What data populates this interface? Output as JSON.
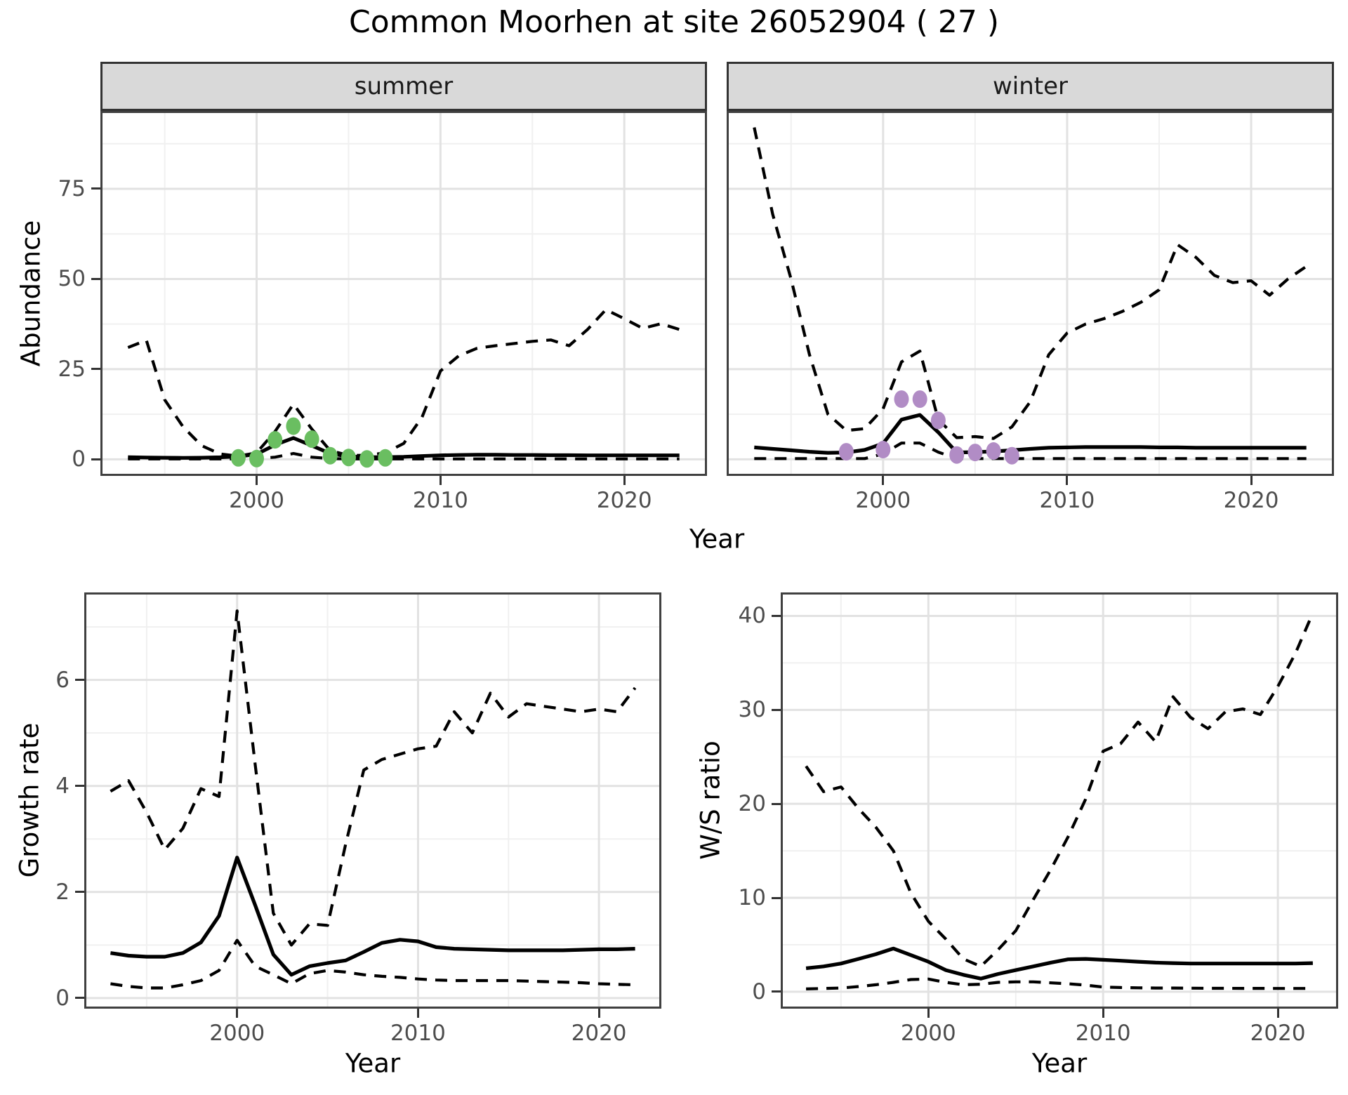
{
  "title": "Common Moorhen at site 26052904 ( 27 )",
  "axis_titles": {
    "x": "Year",
    "y_abundance": "Abundance",
    "y_growth": "Growth rate",
    "y_ws": "W/S ratio"
  },
  "theme": {
    "point_green": "#6ABE61",
    "point_purple": "#B18CC5",
    "line_color": "#000000",
    "strip_bg": "#D9D9D9",
    "panel_border": "#404040",
    "grid_major": "#E2E2E2",
    "grid_minor": "#F0F0F0",
    "tick_color": "#333333",
    "tick_label_color": "#4D4D4D"
  },
  "chart_data": [
    {
      "id": "abundance-summer",
      "type": "line",
      "facet_label": "summer",
      "xlabel": "Year",
      "ylabel": "Abundance",
      "x_ticks": [
        2000,
        2010,
        2020
      ],
      "x_minor": [
        1995,
        2005,
        2015
      ],
      "y_ticks": [
        0,
        25,
        50,
        75
      ],
      "y_minor": [
        12.5,
        37.5,
        62.5,
        87.5
      ],
      "xlim": [
        1991.5,
        2024.5
      ],
      "ylim": [
        -4.6,
        96.6
      ],
      "x": [
        1993,
        1994,
        1995,
        1996,
        1997,
        1998,
        1999,
        2000,
        2001,
        2002,
        2003,
        2004,
        2005,
        2006,
        2007,
        2008,
        2009,
        2010,
        2011,
        2012,
        2013,
        2014,
        2015,
        2016,
        2017,
        2018,
        2019,
        2020,
        2021,
        2022,
        2023
      ],
      "series": [
        {
          "name": "median",
          "style": "solid",
          "values": [
            0.6,
            0.5,
            0.45,
            0.4,
            0.45,
            0.55,
            0.8,
            1.4,
            4.0,
            5.9,
            3.8,
            1.6,
            0.8,
            0.6,
            0.6,
            0.7,
            0.9,
            1.1,
            1.2,
            1.25,
            1.25,
            1.2,
            1.2,
            1.15,
            1.15,
            1.1,
            1.1,
            1.1,
            1.1,
            1.1,
            1.1
          ]
        },
        {
          "name": "upper_95ci",
          "style": "dashed",
          "values": [
            31,
            33,
            16.5,
            9,
            3.8,
            1.5,
            0.9,
            1.8,
            7.7,
            15.3,
            8.4,
            2.4,
            1.1,
            1.1,
            1.8,
            4.4,
            11.7,
            24.5,
            28.7,
            30.8,
            31.5,
            32.1,
            32.7,
            33.1,
            31.5,
            36,
            41.5,
            39,
            36.3,
            37.6,
            36
          ]
        },
        {
          "name": "lower_95ci",
          "style": "dashed",
          "values": [
            0.1,
            0.1,
            0.1,
            0.1,
            0.1,
            0.1,
            0.1,
            0.2,
            0.6,
            1.6,
            0.6,
            0.2,
            0.1,
            0.1,
            0.1,
            0.1,
            0.1,
            0.1,
            0.1,
            0.1,
            0.1,
            0.1,
            0.1,
            0.1,
            0.1,
            0.1,
            0.1,
            0.1,
            0.1,
            0.1,
            0.1
          ]
        }
      ],
      "points": {
        "label": "observed summer counts",
        "color": "#6ABE61",
        "x": [
          1999,
          2000,
          2001,
          2002,
          2003,
          2004,
          2005,
          2006,
          2007
        ],
        "y": [
          0.4,
          0.2,
          5.4,
          9.2,
          5.6,
          1.0,
          0.5,
          0.1,
          0.4
        ]
      }
    },
    {
      "id": "abundance-winter",
      "type": "line",
      "facet_label": "winter",
      "xlabel": "Year",
      "ylabel": "Abundance",
      "x_ticks": [
        2000,
        2010,
        2020
      ],
      "x_minor": [
        1995,
        2005,
        2015
      ],
      "y_ticks": [
        0,
        25,
        50,
        75
      ],
      "y_minor": [
        12.5,
        37.5,
        62.5,
        87.5
      ],
      "xlim": [
        1991.5,
        2024.5
      ],
      "ylim": [
        -4.6,
        96.6
      ],
      "x": [
        1993,
        1994,
        1995,
        1996,
        1997,
        1998,
        1999,
        2000,
        2001,
        2002,
        2003,
        2004,
        2005,
        2006,
        2007,
        2008,
        2009,
        2010,
        2011,
        2012,
        2013,
        2014,
        2015,
        2016,
        2017,
        2018,
        2019,
        2020,
        2021,
        2022,
        2023
      ],
      "series": [
        {
          "name": "median",
          "style": "solid",
          "values": [
            3.3,
            2.9,
            2.5,
            2.1,
            1.8,
            1.9,
            2.6,
            4.4,
            11,
            12.3,
            7.5,
            1.9,
            2.0,
            2.2,
            2.5,
            2.9,
            3.2,
            3.3,
            3.4,
            3.4,
            3.4,
            3.4,
            3.3,
            3.3,
            3.2,
            3.2,
            3.2,
            3.2,
            3.2,
            3.2,
            3.2
          ]
        },
        {
          "name": "upper_95ci",
          "style": "dashed",
          "values": [
            92,
            68,
            50,
            29,
            12.5,
            8,
            8.5,
            14,
            27,
            30,
            11,
            6,
            6.3,
            5.8,
            9,
            16,
            29,
            35,
            37.5,
            39,
            41,
            43.5,
            47,
            59.5,
            56,
            51,
            49,
            49.5,
            45.5,
            50,
            53.5
          ]
        },
        {
          "name": "lower_95ci",
          "style": "dashed",
          "values": [
            0.2,
            0.2,
            0.2,
            0.2,
            0.2,
            0.2,
            0.2,
            1.5,
            4.5,
            4.5,
            2,
            0.2,
            0.2,
            0.2,
            0.2,
            0.2,
            0.2,
            0.2,
            0.2,
            0.2,
            0.2,
            0.2,
            0.2,
            0.2,
            0.2,
            0.2,
            0.2,
            0.2,
            0.2,
            0.2,
            0.2
          ]
        }
      ],
      "points": {
        "label": "observed winter counts",
        "color": "#B18CC5",
        "x": [
          1998,
          2000,
          2001,
          2002,
          2003,
          2004,
          2005,
          2006,
          2007
        ],
        "y": [
          2.1,
          2.7,
          16.7,
          16.7,
          10.8,
          1.2,
          1.9,
          2.3,
          1.0
        ]
      }
    },
    {
      "id": "growth-rate",
      "type": "line",
      "facet_label": "",
      "xlabel": "Year",
      "ylabel": "Growth rate",
      "x_ticks": [
        2000,
        2010,
        2020
      ],
      "x_minor": [
        1995,
        2005,
        2015
      ],
      "y_ticks": [
        0,
        2,
        4,
        6
      ],
      "y_minor": [
        1,
        3,
        5,
        7
      ],
      "xlim": [
        1991.55,
        2023.45
      ],
      "ylim": [
        -0.2,
        7.65
      ],
      "x": [
        1993,
        1994,
        1995,
        1996,
        1997,
        1998,
        1999,
        2000,
        2001,
        2002,
        2003,
        2004,
        2005,
        2006,
        2007,
        2008,
        2009,
        2010,
        2011,
        2012,
        2013,
        2014,
        2015,
        2016,
        2017,
        2018,
        2019,
        2020,
        2021,
        2022
      ],
      "series": [
        {
          "name": "median",
          "style": "solid",
          "values": [
            0.85,
            0.8,
            0.78,
            0.78,
            0.85,
            1.05,
            1.55,
            2.65,
            1.75,
            0.82,
            0.44,
            0.6,
            0.66,
            0.71,
            0.87,
            1.04,
            1.1,
            1.07,
            0.96,
            0.93,
            0.92,
            0.91,
            0.9,
            0.9,
            0.9,
            0.9,
            0.91,
            0.92,
            0.92,
            0.93
          ]
        },
        {
          "name": "upper_95ci",
          "style": "dashed",
          "values": [
            3.9,
            4.1,
            3.5,
            2.8,
            3.2,
            3.95,
            3.8,
            7.3,
            4.4,
            1.6,
            1.0,
            1.4,
            1.37,
            2.9,
            4.3,
            4.5,
            4.6,
            4.7,
            4.75,
            5.4,
            5.0,
            5.75,
            5.3,
            5.55,
            5.5,
            5.45,
            5.4,
            5.45,
            5.4,
            5.85
          ]
        },
        {
          "name": "lower_95ci",
          "style": "dashed",
          "values": [
            0.27,
            0.22,
            0.19,
            0.19,
            0.25,
            0.33,
            0.52,
            1.09,
            0.6,
            0.44,
            0.27,
            0.46,
            0.52,
            0.49,
            0.44,
            0.41,
            0.39,
            0.36,
            0.34,
            0.33,
            0.33,
            0.33,
            0.33,
            0.32,
            0.31,
            0.3,
            0.29,
            0.27,
            0.26,
            0.25
          ]
        }
      ],
      "points": null
    },
    {
      "id": "ws-ratio",
      "type": "line",
      "facet_label": "",
      "xlabel": "Year",
      "ylabel": "W/S ratio",
      "x_ticks": [
        2000,
        2010,
        2020
      ],
      "x_minor": [
        1995,
        2005,
        2015
      ],
      "y_ticks": [
        0,
        10,
        20,
        30,
        40
      ],
      "y_minor": [
        5,
        15,
        25,
        35
      ],
      "xlim": [
        1991.55,
        2023.45
      ],
      "ylim": [
        -1.8,
        42.5
      ],
      "x": [
        1993,
        1994,
        1995,
        1996,
        1997,
        1998,
        1999,
        2000,
        2001,
        2002,
        2003,
        2004,
        2005,
        2006,
        2007,
        2008,
        2009,
        2010,
        2011,
        2012,
        2013,
        2014,
        2015,
        2016,
        2017,
        2018,
        2019,
        2020,
        2021,
        2022
      ],
      "series": [
        {
          "name": "median",
          "style": "solid",
          "values": [
            2.5,
            2.7,
            3.0,
            3.5,
            4.0,
            4.6,
            3.9,
            3.2,
            2.3,
            1.8,
            1.4,
            1.9,
            2.3,
            2.7,
            3.1,
            3.45,
            3.5,
            3.4,
            3.3,
            3.2,
            3.1,
            3.05,
            3.0,
            3.0,
            3.0,
            3.0,
            3.0,
            3.0,
            3.0,
            3.05
          ]
        },
        {
          "name": "upper_95ci",
          "style": "dashed",
          "values": [
            24,
            21.3,
            21.8,
            19.5,
            17.5,
            15,
            10.5,
            7.5,
            5.6,
            3.5,
            2.7,
            4.5,
            6.5,
            9.8,
            13,
            16.5,
            20.5,
            25.6,
            26.4,
            28.7,
            26.6,
            31.4,
            29.2,
            28,
            29.8,
            30.1,
            29.5,
            32.5,
            36,
            40.3
          ]
        },
        {
          "name": "lower_95ci",
          "style": "dashed",
          "values": [
            0.3,
            0.35,
            0.4,
            0.55,
            0.75,
            1.0,
            1.3,
            1.35,
            1.0,
            0.75,
            0.8,
            1.0,
            1.05,
            1.05,
            0.95,
            0.85,
            0.7,
            0.5,
            0.45,
            0.42,
            0.4,
            0.4,
            0.38,
            0.37,
            0.37,
            0.36,
            0.36,
            0.35,
            0.35,
            0.35
          ]
        }
      ],
      "points": null
    }
  ]
}
